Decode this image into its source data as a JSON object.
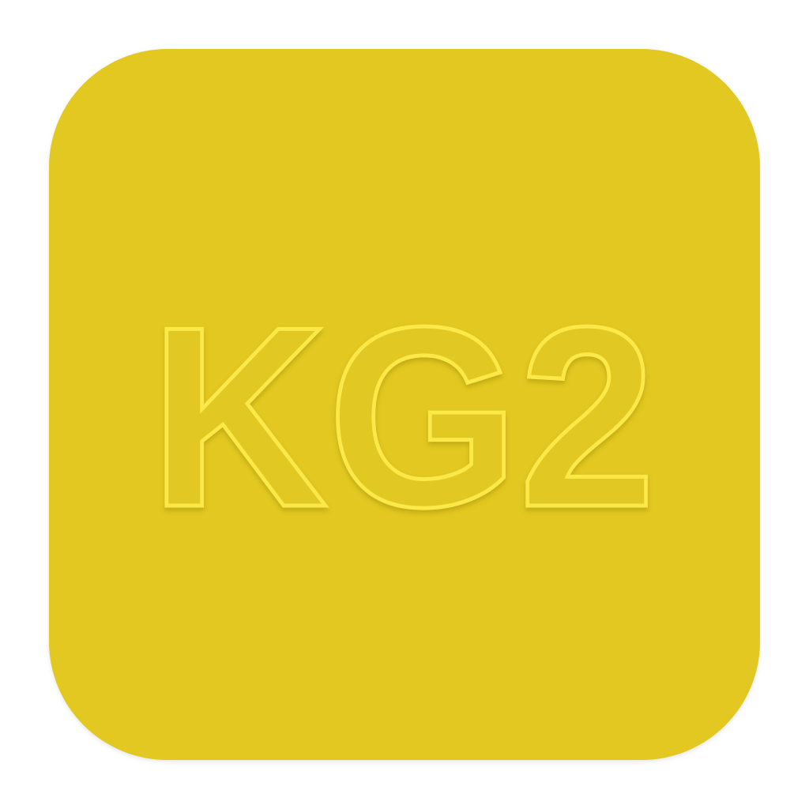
{
  "icon": {
    "label": "KG2",
    "background_color": "#e2c820",
    "outline_color": "#fbe94a"
  }
}
